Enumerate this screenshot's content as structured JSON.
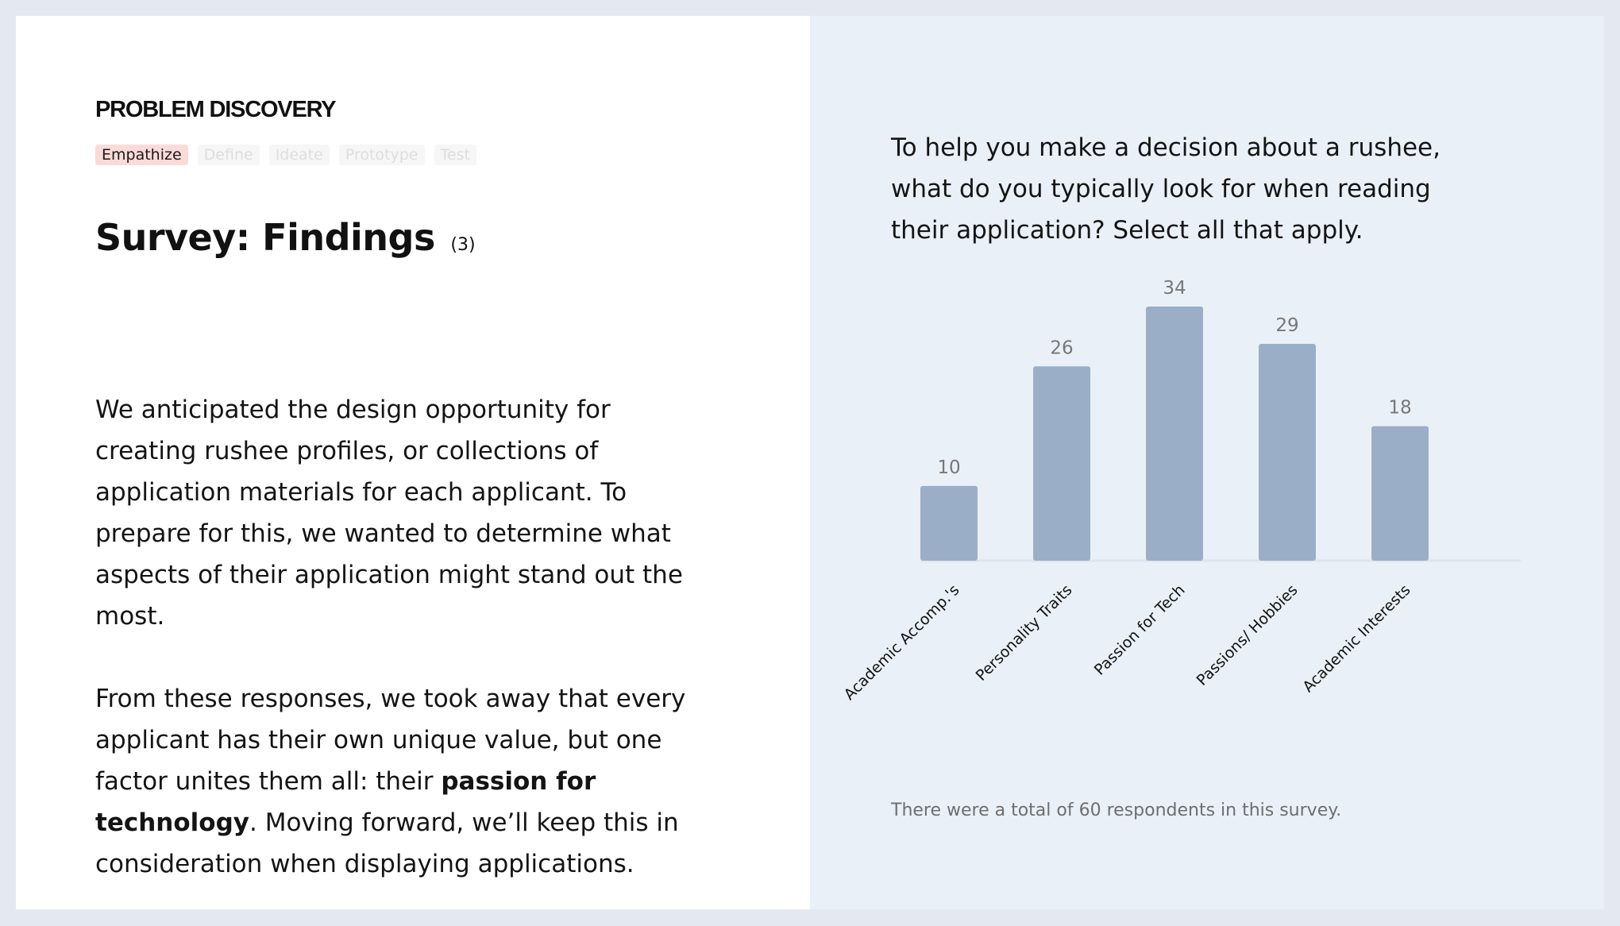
{
  "left": {
    "eyebrow": "PROBLEM DISCOVERY",
    "steps": [
      {
        "label": "Empathize",
        "active": true
      },
      {
        "label": "Define",
        "active": false
      },
      {
        "label": "Ideate",
        "active": false
      },
      {
        "label": "Prototype",
        "active": false
      },
      {
        "label": "Test",
        "active": false
      }
    ],
    "title": "Survey: Findings",
    "title_count": "(3)",
    "paragraph1": "We anticipated the design opportunity for creating rushee profiles, or collections of application materials for each applicant. To prepare for this, we wanted to determine what aspects of their application might stand out the most.",
    "paragraph2_before": "From these responses, we took away that every applicant has their own unique value, but one factor unites them all: their ",
    "paragraph2_bold": "passion for technology",
    "paragraph2_after": ". Moving forward, we’ll keep this in consideration when displaying applications."
  },
  "right": {
    "question": "To help you make a decision about a rushee, what do you typically look for when reading their application? Select all that apply.",
    "footnote": "There were a total of 60 respondents in this survey."
  },
  "colors": {
    "bar": "#9aafc7",
    "value_label": "#777777",
    "tick_label": "#111111",
    "baseline": "#dde4ee"
  },
  "chart_data": {
    "type": "bar",
    "categories": [
      "Academic Accomp.'s",
      "Personality Traits",
      "Passion for Tech",
      "Passions/ Hobbies",
      "Academic Interests"
    ],
    "values": [
      10,
      26,
      34,
      29,
      18
    ],
    "title": "",
    "xlabel": "",
    "ylabel": "",
    "ylim": [
      0,
      34
    ],
    "grid": false,
    "legend": "none"
  }
}
